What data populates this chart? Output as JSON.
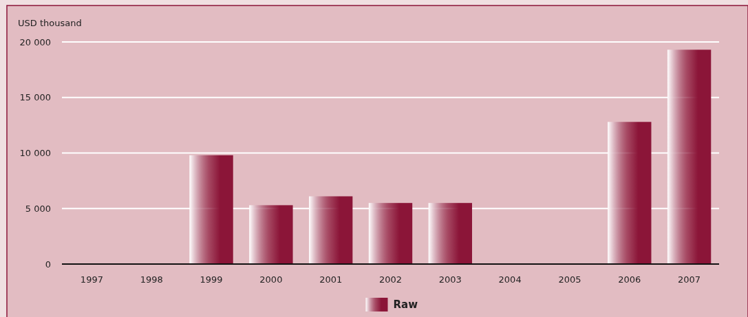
{
  "chart_data": {
    "type": "bar",
    "ylabel": "USD thousand",
    "categories": [
      "1997",
      "1998",
      "1999",
      "2000",
      "2001",
      "2002",
      "2003",
      "2004",
      "2005",
      "2006",
      "2007"
    ],
    "series": [
      {
        "name": "Raw",
        "color": "#8b1538",
        "values": [
          0,
          0,
          9800,
          5300,
          6100,
          5500,
          5500,
          0,
          0,
          12800,
          19300
        ]
      }
    ],
    "ylim": [
      0,
      20000
    ],
    "yticks": [
      0,
      {
        "value": 5000,
        "label": "5 000"
      },
      {
        "value": 10000,
        "label": "10 000"
      },
      {
        "value": 15000,
        "label": "15 000"
      },
      {
        "value": 20000,
        "label": "20 000"
      }
    ],
    "grid": "y",
    "legend": "bottom"
  }
}
